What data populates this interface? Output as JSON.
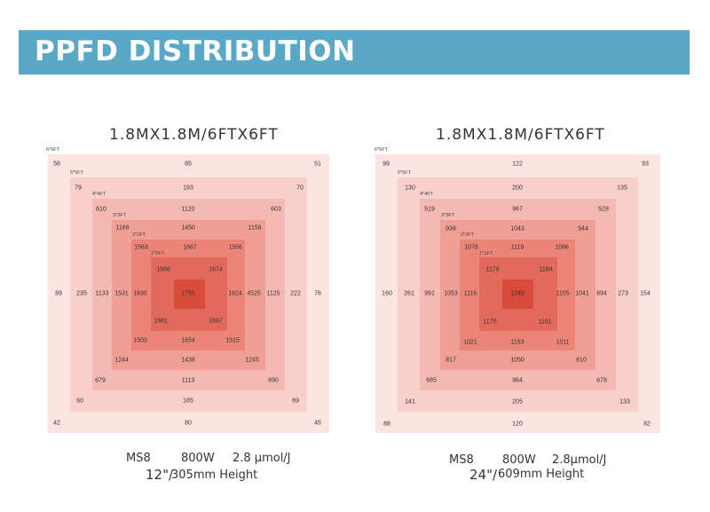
{
  "header": {
    "title": "PPFD DISTRIBUTION"
  },
  "colors": {
    "banner": "#5aa8c8",
    "ring1": "#fbe4e2",
    "ring2": "#f8d0cb",
    "ring3": "#f4b9b2",
    "ring4": "#f09f96",
    "ring5": "#ea8578",
    "ring6": "#e26a5c",
    "center": "#d94c3c"
  },
  "panels": [
    {
      "title": "1.8MX1.8M/6FTX6FT",
      "square_labels": [
        "6*6FT",
        "5*5FT",
        "4*4FT",
        "3*3FT",
        "2*2FT",
        "1*1FT"
      ],
      "values": {
        "r1": [
          "58",
          "85",
          "51",
          "89",
          "76",
          "42",
          "80",
          "45"
        ],
        "r2": [
          "79",
          "193",
          "70",
          "235",
          "222",
          "60",
          "185",
          "69"
        ],
        "r3": [
          "610",
          "1120",
          "603",
          "1133",
          "1125",
          "679",
          "1113",
          "690"
        ],
        "r4": [
          "1166",
          "1450",
          "1158",
          "1531",
          "4525",
          "1244",
          "1438",
          "1245"
        ],
        "r5": [
          "1563",
          "1667",
          "1556",
          "1630",
          "1624",
          "1503",
          "1654",
          "1515"
        ],
        "r6": [
          "1686",
          "1674",
          "1681",
          "1697"
        ],
        "center": "1755"
      },
      "footer": {
        "model": "MS8",
        "power": "800W",
        "efficiency": "2.8 μmol/J",
        "height_in": "12\"/",
        "height_mm": "305mm Height"
      }
    },
    {
      "title": "1.8MX1.8M/6FTX6FT",
      "square_labels": [
        "6*6FT",
        "5*5FT",
        "4*4FT",
        "3*3FT",
        "2*2FT",
        "1*1FT"
      ],
      "values": {
        "r1": [
          "99",
          "122",
          "93",
          "160",
          "154",
          "88",
          "120",
          "82"
        ],
        "r2": [
          "130",
          "200",
          "135",
          "261",
          "273",
          "141",
          "205",
          "133"
        ],
        "r3": [
          "519",
          "967",
          "528",
          "991",
          "894",
          "685",
          "964",
          "678"
        ],
        "r4": [
          "938",
          "1043",
          "944",
          "1053",
          "1041",
          "817",
          "1050",
          "810"
        ],
        "r5": [
          "1078",
          "1119",
          "1086",
          "1116",
          "1105",
          "1021",
          "1153",
          "1011"
        ],
        "r6": [
          "1179",
          "1184",
          "1170",
          "1151"
        ],
        "center": "1249"
      },
      "footer": {
        "model": "MS8",
        "power": "800W",
        "efficiency": "2.8μmol/J",
        "height_in": "24\"/",
        "height_mm": "609mm Height"
      }
    }
  ]
}
